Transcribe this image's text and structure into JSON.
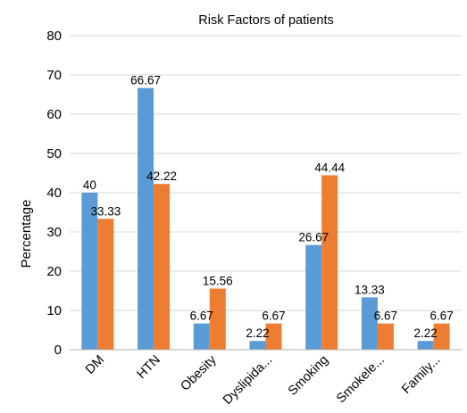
{
  "chart_data": {
    "type": "bar",
    "title": "Risk Factors of patients",
    "xlabel": "",
    "ylabel": "Percentage",
    "categories": [
      "DM",
      "HTN",
      "Obesity",
      "Dyslipida...",
      "Smoking",
      "Smokele...",
      "Family..."
    ],
    "series": [
      {
        "color": "#5B9BD5",
        "values": [
          40,
          66.67,
          6.67,
          2.22,
          26.67,
          13.33,
          2.22
        ]
      },
      {
        "color": "#ED7D31",
        "values": [
          33.33,
          42.22,
          15.56,
          6.67,
          44.44,
          6.67,
          6.67
        ]
      }
    ],
    "data_labels": [
      [
        "40",
        "66.67",
        "6.67",
        "2.22",
        "26.67",
        "13.33",
        "2.22"
      ],
      [
        "33.33",
        "42.22",
        "15.56",
        "6.67",
        "44.44",
        "6.67",
        "6.67"
      ]
    ],
    "yticks": [
      "0",
      "10",
      "20",
      "30",
      "40",
      "50",
      "60",
      "70",
      "80"
    ],
    "ylim": [
      0,
      80
    ],
    "grid": true,
    "legend": "none"
  }
}
